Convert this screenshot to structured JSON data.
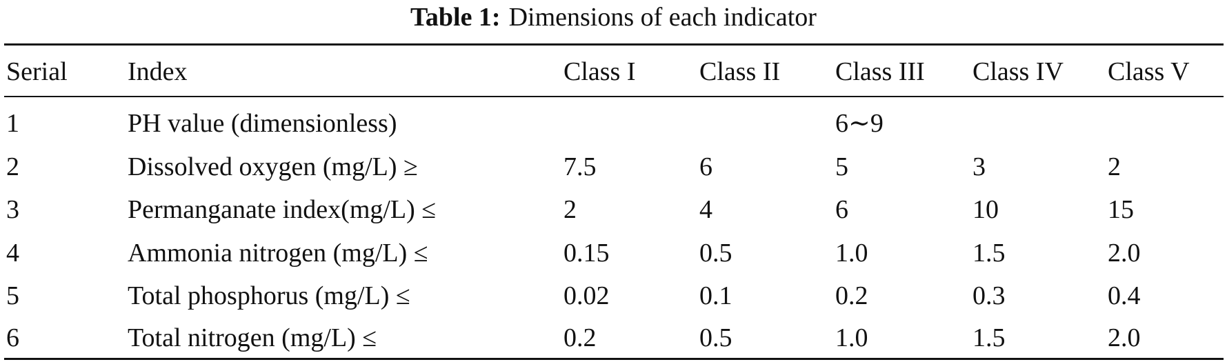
{
  "caption": {
    "label": "Table 1:",
    "text": "Dimensions of each indicator"
  },
  "columns": [
    "Serial",
    "Index",
    "Class I",
    "Class II",
    "Class III",
    "Class IV",
    "Class V"
  ],
  "rows": [
    [
      "1",
      "PH value (dimensionless)",
      "",
      "",
      "6∼9",
      "",
      ""
    ],
    [
      "2",
      "Dissolved oxygen (mg/L) ≥",
      "7.5",
      "6",
      "5",
      "3",
      "2"
    ],
    [
      "3",
      "Permanganate index(mg/L) ≤",
      "2",
      "4",
      "6",
      "10",
      "15"
    ],
    [
      "4",
      "Ammonia nitrogen (mg/L) ≤",
      "0.15",
      "0.5",
      "1.0",
      "1.5",
      "2.0"
    ],
    [
      "5",
      "Total phosphorus (mg/L) ≤",
      "0.02",
      "0.1",
      "0.2",
      "0.3",
      "0.4"
    ],
    [
      "6",
      "Total nitrogen (mg/L) ≤",
      "0.2",
      "0.5",
      "1.0",
      "1.5",
      "2.0"
    ]
  ]
}
